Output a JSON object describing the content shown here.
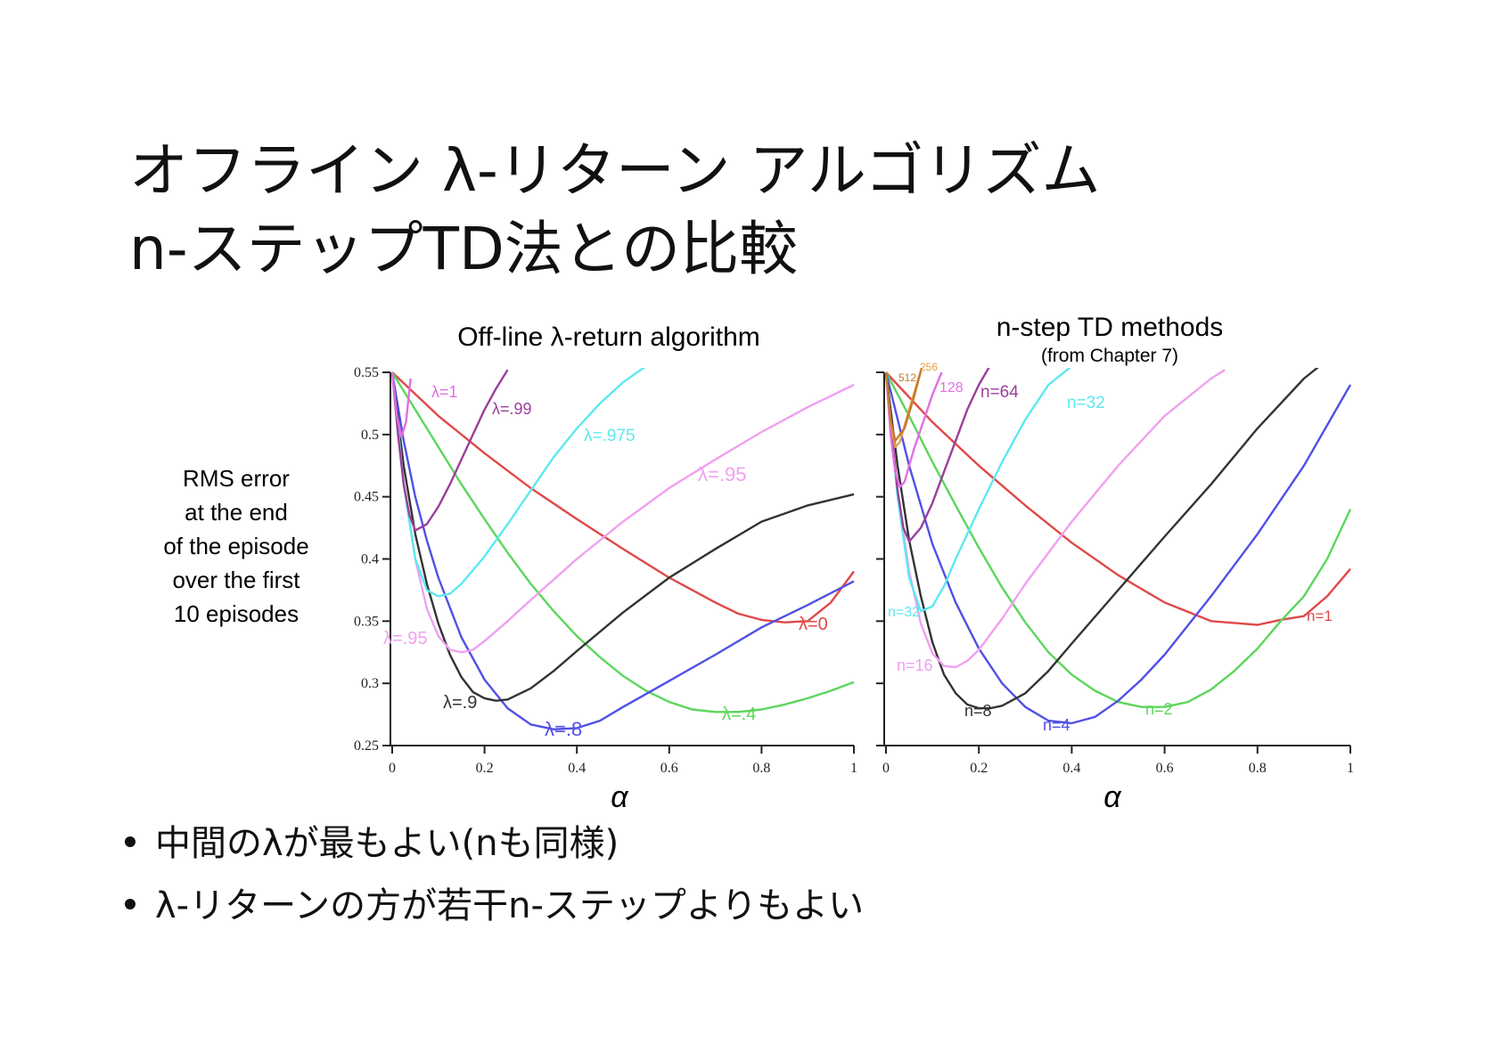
{
  "slide": {
    "title_line1": "オフライン λ-リターン アルゴリズム",
    "title_line2": "n-ステップTD法との比較",
    "bullets": [
      "中間のλが最もよい(nも同様)",
      "λ-リターンの方が若干n-ステップよりもよい"
    ]
  },
  "y_axis_label_lines": [
    "RMS error",
    "at the end",
    "of the episode",
    "over the first",
    "10 episodes"
  ],
  "chart_data": [
    {
      "type": "line",
      "title": "Off-line λ-return algorithm",
      "subtitle": "",
      "xlabel": "α",
      "xlim": [
        0,
        1
      ],
      "ylim": [
        0.25,
        0.55
      ],
      "xticks": [
        "0",
        "0.2",
        "0.4",
        "0.6",
        "0.8",
        "1"
      ],
      "yticks": [
        "0.25",
        "0.3",
        "0.35",
        "0.4",
        "0.45",
        "0.5",
        "0.55"
      ],
      "series": [
        {
          "name": "λ=0",
          "color": "#e04848",
          "x": [
            0,
            0.1,
            0.2,
            0.3,
            0.4,
            0.5,
            0.6,
            0.7,
            0.75,
            0.8,
            0.85,
            0.9,
            0.95,
            1.0
          ],
          "y": [
            0.55,
            0.515,
            0.485,
            0.457,
            0.432,
            0.408,
            0.385,
            0.365,
            0.356,
            0.351,
            0.349,
            0.35,
            0.365,
            0.39
          ]
        },
        {
          "name": "λ=.4",
          "color": "#5cd65c",
          "x": [
            0,
            0.05,
            0.1,
            0.15,
            0.2,
            0.25,
            0.3,
            0.35,
            0.4,
            0.45,
            0.5,
            0.55,
            0.6,
            0.65,
            0.7,
            0.75,
            0.8,
            0.85,
            0.9,
            0.95,
            1.0
          ],
          "y": [
            0.55,
            0.52,
            0.49,
            0.46,
            0.432,
            0.405,
            0.38,
            0.358,
            0.338,
            0.321,
            0.306,
            0.294,
            0.285,
            0.279,
            0.277,
            0.277,
            0.279,
            0.283,
            0.288,
            0.294,
            0.301
          ]
        },
        {
          "name": "λ=.8",
          "color": "#5050e6",
          "x": [
            0,
            0.025,
            0.05,
            0.075,
            0.1,
            0.15,
            0.2,
            0.25,
            0.3,
            0.35,
            0.4,
            0.45,
            0.5,
            0.6,
            0.7,
            0.8,
            0.9,
            1.0
          ],
          "y": [
            0.55,
            0.495,
            0.45,
            0.415,
            0.385,
            0.337,
            0.303,
            0.28,
            0.267,
            0.263,
            0.264,
            0.27,
            0.281,
            0.302,
            0.323,
            0.345,
            0.363,
            0.382
          ]
        },
        {
          "name": "λ=.9",
          "color": "#333333",
          "x": [
            0,
            0.025,
            0.05,
            0.075,
            0.1,
            0.125,
            0.15,
            0.175,
            0.2,
            0.225,
            0.25,
            0.3,
            0.35,
            0.4,
            0.5,
            0.6,
            0.7,
            0.8,
            0.9,
            1.0
          ],
          "y": [
            0.55,
            0.475,
            0.42,
            0.38,
            0.348,
            0.323,
            0.305,
            0.293,
            0.288,
            0.286,
            0.287,
            0.296,
            0.31,
            0.326,
            0.357,
            0.385,
            0.408,
            0.43,
            0.443,
            0.452
          ]
        },
        {
          "name": "λ=.95",
          "color": "#f0a0f0",
          "x": [
            0,
            0.025,
            0.05,
            0.075,
            0.1,
            0.125,
            0.15,
            0.175,
            0.2,
            0.25,
            0.3,
            0.4,
            0.5,
            0.6,
            0.7,
            0.8,
            0.9,
            1.0
          ],
          "y": [
            0.55,
            0.46,
            0.4,
            0.36,
            0.338,
            0.327,
            0.325,
            0.327,
            0.334,
            0.35,
            0.367,
            0.4,
            0.43,
            0.457,
            0.48,
            0.502,
            0.522,
            0.54
          ]
        },
        {
          "name": "λ=.975",
          "color": "#5ce8f0",
          "x": [
            0,
            0.025,
            0.05,
            0.075,
            0.1,
            0.125,
            0.15,
            0.2,
            0.25,
            0.3,
            0.35,
            0.4,
            0.45,
            0.5,
            0.55
          ],
          "y": [
            0.55,
            0.46,
            0.4,
            0.375,
            0.37,
            0.372,
            0.38,
            0.402,
            0.428,
            0.455,
            0.482,
            0.505,
            0.525,
            0.542,
            0.555
          ]
        },
        {
          "name": "λ=.99",
          "color": "#9a3f9a",
          "x": [
            0,
            0.0125,
            0.025,
            0.0375,
            0.05,
            0.075,
            0.1,
            0.125,
            0.15,
            0.175,
            0.2,
            0.225,
            0.25
          ],
          "y": [
            0.55,
            0.5,
            0.46,
            0.435,
            0.423,
            0.428,
            0.442,
            0.46,
            0.48,
            0.5,
            0.52,
            0.537,
            0.552
          ]
        },
        {
          "name": "λ=1",
          "color": "#e070e0",
          "x": [
            0,
            0.01,
            0.02,
            0.03,
            0.04
          ],
          "y": [
            0.55,
            0.515,
            0.498,
            0.51,
            0.545
          ]
        }
      ],
      "annotations": [
        "λ=1",
        "λ=.99",
        "λ=.975",
        "λ=.95",
        "λ=.95",
        "λ=.9",
        "λ=.8",
        "λ=.4",
        "λ=0"
      ]
    },
    {
      "type": "line",
      "title": "n-step TD methods",
      "subtitle": "(from Chapter 7)",
      "xlabel": "α",
      "xlim": [
        0,
        1
      ],
      "ylim": [
        0.25,
        0.55
      ],
      "xticks": [
        "0",
        "0.2",
        "0.4",
        "0.6",
        "0.8",
        "1"
      ],
      "series": [
        {
          "name": "n=1",
          "color": "#e04848",
          "x": [
            0,
            0.1,
            0.2,
            0.3,
            0.4,
            0.5,
            0.6,
            0.7,
            0.8,
            0.85,
            0.9,
            0.95,
            1.0
          ],
          "y": [
            0.55,
            0.51,
            0.475,
            0.443,
            0.413,
            0.387,
            0.365,
            0.35,
            0.347,
            0.351,
            0.354,
            0.37,
            0.392
          ]
        },
        {
          "name": "n=2",
          "color": "#5cd65c",
          "x": [
            0,
            0.05,
            0.1,
            0.15,
            0.2,
            0.25,
            0.3,
            0.35,
            0.4,
            0.45,
            0.5,
            0.55,
            0.6,
            0.65,
            0.7,
            0.75,
            0.8,
            0.85,
            0.9,
            0.95,
            1.0
          ],
          "y": [
            0.55,
            0.515,
            0.478,
            0.443,
            0.409,
            0.377,
            0.349,
            0.325,
            0.307,
            0.294,
            0.285,
            0.281,
            0.281,
            0.285,
            0.295,
            0.31,
            0.328,
            0.35,
            0.37,
            0.4,
            0.44
          ]
        },
        {
          "name": "n=4",
          "color": "#5050e6",
          "x": [
            0,
            0.05,
            0.1,
            0.15,
            0.2,
            0.25,
            0.3,
            0.35,
            0.4,
            0.45,
            0.5,
            0.55,
            0.6,
            0.7,
            0.8,
            0.9,
            1.0
          ],
          "y": [
            0.55,
            0.475,
            0.412,
            0.365,
            0.328,
            0.3,
            0.281,
            0.27,
            0.268,
            0.273,
            0.286,
            0.303,
            0.323,
            0.37,
            0.42,
            0.475,
            0.54
          ]
        },
        {
          "name": "n=8",
          "color": "#333333",
          "x": [
            0,
            0.025,
            0.05,
            0.075,
            0.1,
            0.125,
            0.15,
            0.175,
            0.2,
            0.225,
            0.25,
            0.3,
            0.35,
            0.4,
            0.5,
            0.6,
            0.7,
            0.8,
            0.9,
            0.95
          ],
          "y": [
            0.55,
            0.475,
            0.415,
            0.37,
            0.333,
            0.307,
            0.292,
            0.283,
            0.28,
            0.28,
            0.282,
            0.292,
            0.31,
            0.332,
            0.375,
            0.418,
            0.46,
            0.505,
            0.545,
            0.56
          ]
        },
        {
          "name": "n=16",
          "color": "#f0a0f0",
          "x": [
            0,
            0.025,
            0.05,
            0.075,
            0.1,
            0.125,
            0.15,
            0.175,
            0.2,
            0.25,
            0.3,
            0.4,
            0.5,
            0.6,
            0.7,
            0.73
          ],
          "y": [
            0.55,
            0.455,
            0.39,
            0.348,
            0.324,
            0.314,
            0.313,
            0.318,
            0.327,
            0.352,
            0.38,
            0.43,
            0.475,
            0.515,
            0.545,
            0.552
          ]
        },
        {
          "name": "n=32",
          "color": "#5ce8f0",
          "x": [
            0,
            0.025,
            0.05,
            0.075,
            0.1,
            0.125,
            0.15,
            0.2,
            0.25,
            0.3,
            0.35,
            0.4
          ],
          "y": [
            0.55,
            0.45,
            0.385,
            0.358,
            0.362,
            0.378,
            0.4,
            0.44,
            0.478,
            0.512,
            0.54,
            0.555
          ]
        },
        {
          "name": "n=64",
          "color": "#9a3f9a",
          "x": [
            0,
            0.0125,
            0.025,
            0.0375,
            0.05,
            0.075,
            0.1,
            0.125,
            0.15,
            0.175,
            0.2,
            0.225
          ],
          "y": [
            0.55,
            0.5,
            0.455,
            0.425,
            0.414,
            0.425,
            0.445,
            0.47,
            0.495,
            0.52,
            0.54,
            0.556
          ]
        },
        {
          "name": "128",
          "color": "#e070e0",
          "x": [
            0,
            0.01,
            0.02,
            0.03,
            0.04,
            0.06,
            0.08,
            0.1,
            0.12
          ],
          "y": [
            0.55,
            0.5,
            0.47,
            0.458,
            0.462,
            0.488,
            0.51,
            0.532,
            0.55
          ]
        },
        {
          "name": "256",
          "color": "#e0a040",
          "x": [
            0,
            0.01,
            0.02,
            0.03,
            0.05,
            0.07,
            0.08
          ],
          "y": [
            0.55,
            0.51,
            0.49,
            0.494,
            0.52,
            0.545,
            0.558
          ]
        },
        {
          "name": "512",
          "color": "#c87a30",
          "x": [
            0,
            0.01,
            0.02,
            0.04,
            0.06,
            0.08
          ],
          "y": [
            0.55,
            0.512,
            0.495,
            0.505,
            0.53,
            0.558
          ]
        }
      ],
      "annotations": [
        "512",
        "256",
        "128",
        "n=64",
        "n=32",
        "n=32",
        "n=16",
        "n=8",
        "n=4",
        "n=2",
        "n=1"
      ]
    }
  ]
}
